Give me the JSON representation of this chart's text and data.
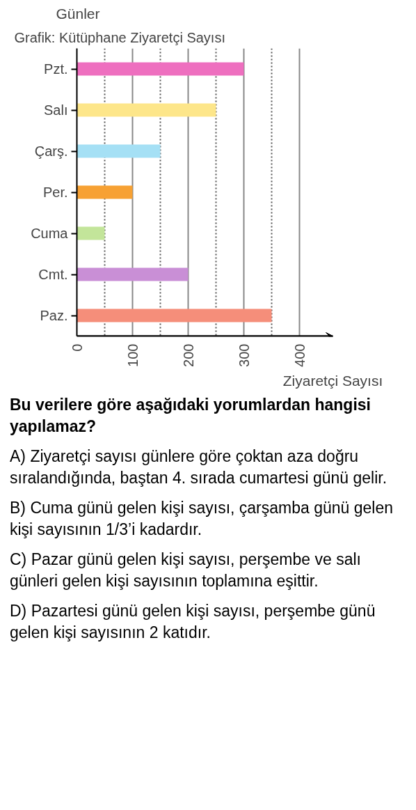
{
  "chart_data": {
    "type": "bar",
    "orientation": "horizontal",
    "title": "Grafik: Kütüphane Ziyaretçi Sayısı",
    "ylabel": "Günler",
    "xlabel": "Ziyaretçi Sayısı",
    "categories": [
      "Pzt.",
      "Salı",
      "Çarş.",
      "Per.",
      "Cuma",
      "Cmt.",
      "Paz."
    ],
    "values": [
      300,
      250,
      150,
      100,
      50,
      200,
      350
    ],
    "colors": [
      "#ee6fbf",
      "#fde68a",
      "#a5e0f5",
      "#f7a133",
      "#c3e59a",
      "#c98fd6",
      "#f58e7a"
    ],
    "xlim": [
      0,
      460
    ],
    "xticks": [
      {
        "value": 0,
        "label": "0"
      },
      {
        "value": 50,
        "label": null
      },
      100,
      {
        "value": 150,
        "label": null
      },
      200,
      {
        "value": 250,
        "label": null
      },
      300,
      {
        "value": 350,
        "label": null
      },
      400
    ],
    "grid": "x",
    "legend": false,
    "annotations": [
      "Bu verilere göre aşağıdaki yorumlardan hangisi yapılamaz?",
      "A) Ziyaretçi sayısı günlere göre çoktan aza doğru sıralandığında, baştan 4. sırada cumartesi günü gelir.",
      "B) Cuma günü gelen kişi sayısı, çarşamba günü gelen kişi sayısının 1/3’i kadardır.",
      "C) Pazar günü gelen kişi sayısı, perşembe ve salı günleri gelen kişi sayısının toplamına eşittir.",
      "D) Pazartesi günü gelen kişi sayısı, perşembe günü gelen kişi sayısının 2 katıdır."
    ]
  }
}
